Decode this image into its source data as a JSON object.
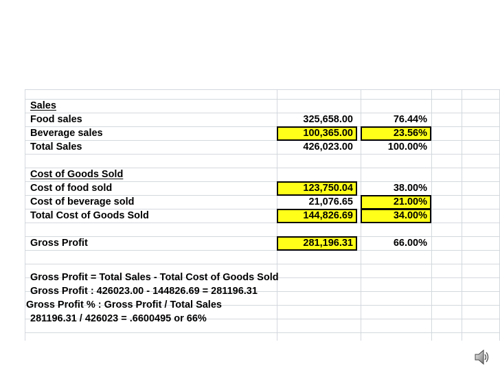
{
  "sales": {
    "heading": "Sales",
    "rows": [
      {
        "label": "Food sales",
        "amount": "325,658.00",
        "percent": "76.44%"
      },
      {
        "label": "Beverage sales",
        "amount": "100,365.00",
        "percent": "23.56%"
      },
      {
        "label": "Total Sales",
        "amount": "426,023.00",
        "percent": "100.00%"
      }
    ]
  },
  "cogs": {
    "heading": "Cost of Goods Sold",
    "rows": [
      {
        "label": "Cost of food sold",
        "amount": "123,750.04",
        "percent": "38.00%"
      },
      {
        "label": "Cost of beverage sold",
        "amount": "21,076.65",
        "percent": "21.00%"
      },
      {
        "label": "Total Cost of Goods Sold",
        "amount": "144,826.69",
        "percent": "34.00%"
      }
    ]
  },
  "gross_profit": {
    "label": "Gross Profit",
    "amount": "281,196.31",
    "percent": "66.00%"
  },
  "notes": [
    "Gross Profit = Total Sales - Total Cost of Goods Sold",
    "Gross Profit :  426023.00 - 144826.69 = 281196.31",
    "Gross Profit % : Gross Profit / Total Sales",
    "281196.31 / 426023 = .6600495 or 66%"
  ],
  "colors": {
    "highlight": "#ffff1a",
    "gridline": "#d3d8dd"
  },
  "icons": {
    "audio": "speaker-icon"
  }
}
